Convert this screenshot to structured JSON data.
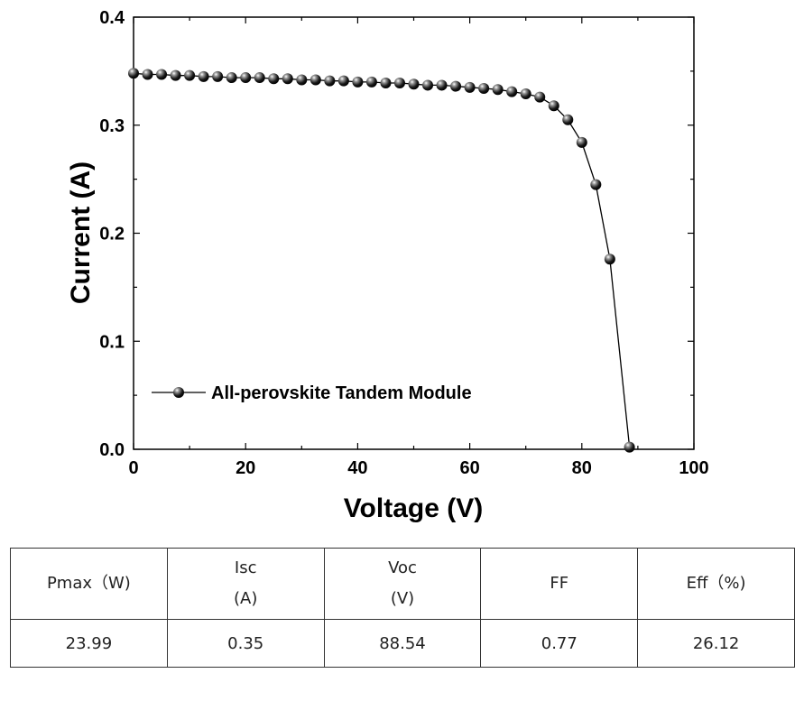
{
  "chart_data": {
    "type": "line",
    "xlabel": "Voltage (V)",
    "ylabel": "Current (A)",
    "xlim": [
      0,
      100
    ],
    "ylim": [
      0,
      0.4
    ],
    "xticks": [
      "0",
      "20",
      "40",
      "60",
      "80",
      "100"
    ],
    "yticks": [
      "0.0",
      "0.1",
      "0.2",
      "0.3",
      "0.4"
    ],
    "grid": false,
    "legend_position": "bottom-left",
    "series": [
      {
        "name": "All-perovskite Tandem Module",
        "marker": "sphere",
        "color": "#000000",
        "x": [
          0,
          2.5,
          5,
          7.5,
          10,
          12.5,
          15,
          17.5,
          20,
          22.5,
          25,
          27.5,
          30,
          32.5,
          35,
          37.5,
          40,
          42.5,
          45,
          47.5,
          50,
          52.5,
          55,
          57.5,
          60,
          62.5,
          65,
          67.5,
          70,
          72.5,
          75,
          77.5,
          80,
          82.5,
          85,
          88.5
        ],
        "y": [
          0.348,
          0.347,
          0.347,
          0.346,
          0.346,
          0.345,
          0.345,
          0.344,
          0.344,
          0.344,
          0.343,
          0.343,
          0.342,
          0.342,
          0.341,
          0.341,
          0.34,
          0.34,
          0.339,
          0.339,
          0.338,
          0.337,
          0.337,
          0.336,
          0.335,
          0.334,
          0.333,
          0.331,
          0.329,
          0.326,
          0.318,
          0.305,
          0.284,
          0.245,
          0.176,
          0.002
        ]
      }
    ]
  },
  "table": {
    "header": [
      [
        "Pmax（W)"
      ],
      [
        "Isc",
        "(A)"
      ],
      [
        "Voc",
        "(V)"
      ],
      [
        "FF"
      ],
      [
        "Eff（%)"
      ]
    ],
    "values": [
      "23.99",
      "0.35",
      "88.54",
      "0.77",
      "26.12"
    ]
  }
}
